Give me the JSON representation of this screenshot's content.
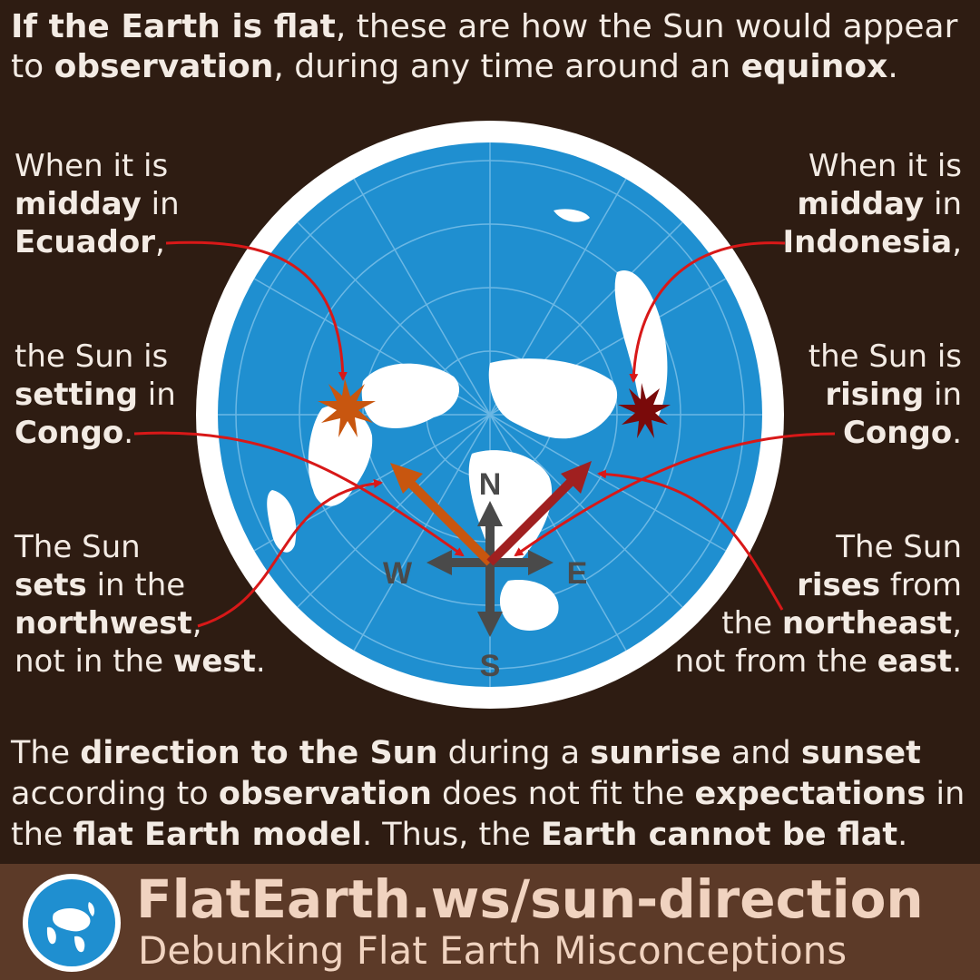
{
  "header": {
    "a": "If the Earth is flat",
    "b": ", these are how the Sun would appear to ",
    "c": "observation",
    "d": ", during any time around an ",
    "e": "equinox",
    "f": "."
  },
  "left_top": {
    "l1": "When it is",
    "l2b": "midday",
    "l2": " in",
    "l3b": "Ecuador",
    "l3": ","
  },
  "left_mid": {
    "l1": "the Sun is",
    "l2b": "setting",
    "l2": " in",
    "l3b": "Congo",
    "l3": "."
  },
  "left_bot": {
    "l1": "The Sun",
    "l2b": "sets",
    "l2": " in the",
    "l3b": "northwest",
    "l3": ",",
    "l4": "not in the ",
    "l4b": "west",
    "l4e": "."
  },
  "right_top": {
    "l1": "When it is",
    "l2b": "midday",
    "l2": " in",
    "l3b": "Indonesia",
    "l3": ","
  },
  "right_mid": {
    "l1": "the Sun is",
    "l2b": "rising",
    "l2": " in",
    "l3b": "Congo",
    "l3": "."
  },
  "right_bot": {
    "l1": "The Sun",
    "l2b": "rises",
    "l2": " from",
    "l3": "the ",
    "l3b": "northeast",
    "l3e": ",",
    "l4": "not from the ",
    "l4b": "east",
    "l4e": "."
  },
  "compass": {
    "n": "N",
    "s": "S",
    "e": "E",
    "w": "W"
  },
  "conclusion": {
    "a": "The ",
    "b": "direction to the Sun",
    "c": " during a ",
    "d": "sunrise",
    "e": " and ",
    "f": "sunset",
    "g": " according to ",
    "h": "observation",
    "i": " does not fit the ",
    "j": "expectations",
    "k": " in the ",
    "l": "flat Earth model",
    "m": ". Thus, the ",
    "n": "Earth cannot be flat",
    "o": "."
  },
  "footer": {
    "url": "FlatEarth.ws/sun-direction",
    "tagline": "Debunking Flat Earth Misconceptions"
  },
  "colors": {
    "background": "#2e1c12",
    "ocean": "#1f8fd0",
    "land": "#ffffff",
    "sun_setting": "#c8560f",
    "sun_rising": "#7a0a0a",
    "pointer": "#d81818",
    "compass": "#4a4a4a",
    "footer": "#5c3a28"
  }
}
